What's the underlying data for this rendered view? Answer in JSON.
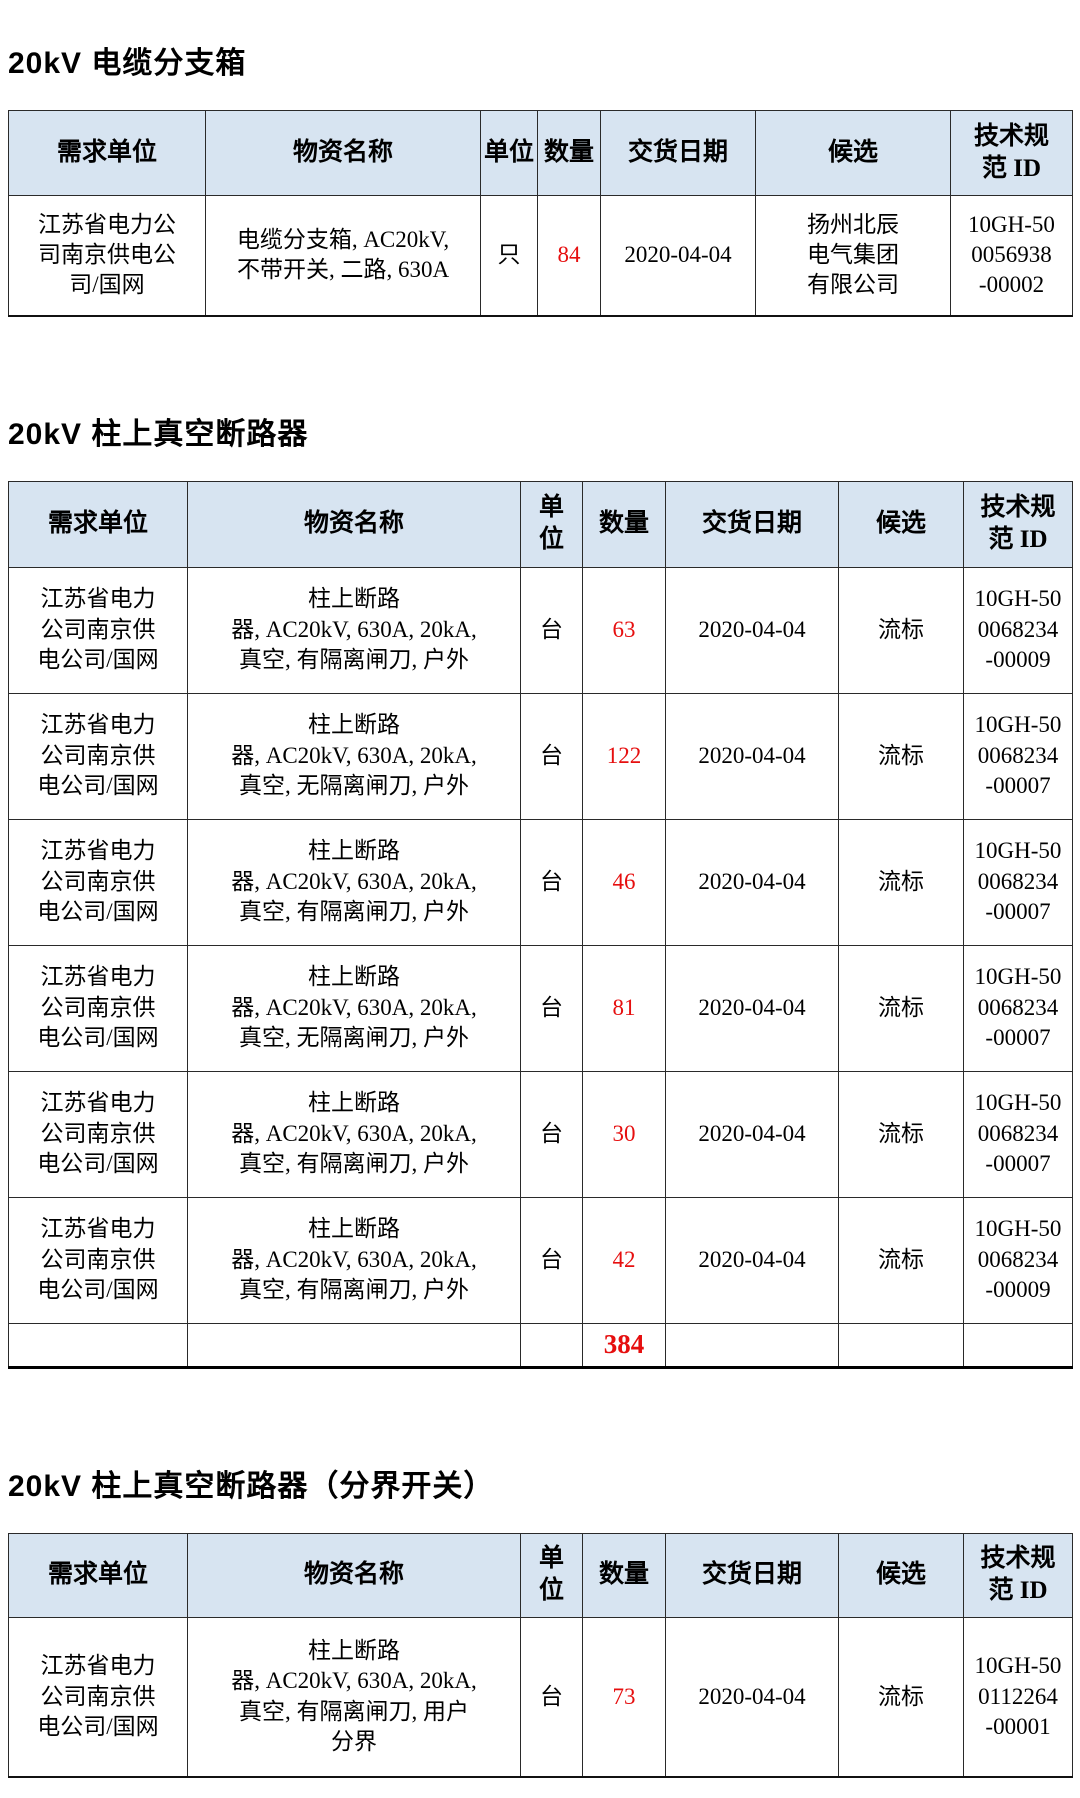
{
  "colors": {
    "header_bg": "#d7e4f1",
    "border": "#2a2a2a",
    "accent_red": "#e60f0f",
    "text": "#000000",
    "page_bg": "#ffffff"
  },
  "sections": [
    {
      "title": "20kV 电缆分支箱",
      "headers": [
        "需求单位",
        "物资名称",
        "单位",
        "数量",
        "交货日期",
        "候选",
        "技术规\n范 ID"
      ],
      "rows": [
        {
          "demand_unit": "江苏省电力公\n司南京供电公\n司/国网",
          "material": "电缆分支箱, AC20kV,\n不带开关, 二路, 630A",
          "unit": "只",
          "qty": "84",
          "date": "2020-04-04",
          "candidate": "扬州北辰\n电气集团\n有限公司",
          "spec_id": "10GH-50\n0056938\n-00002"
        }
      ],
      "total": null
    },
    {
      "title": "20kV 柱上真空断路器",
      "headers": [
        "需求单位",
        "物资名称",
        "单\n位",
        "数量",
        "交货日期",
        "候选",
        "技术规\n范 ID"
      ],
      "rows": [
        {
          "demand_unit": "江苏省电力\n公司南京供\n电公司/国网",
          "material": "柱上断路\n器, AC20kV, 630A, 20kA,\n真空, 有隔离闸刀, 户外",
          "unit": "台",
          "qty": "63",
          "date": "2020-04-04",
          "candidate": "流标",
          "spec_id": "10GH-50\n0068234\n-00009"
        },
        {
          "demand_unit": "江苏省电力\n公司南京供\n电公司/国网",
          "material": "柱上断路\n器, AC20kV, 630A, 20kA,\n真空, 无隔离闸刀, 户外",
          "unit": "台",
          "qty": "122",
          "date": "2020-04-04",
          "candidate": "流标",
          "spec_id": "10GH-50\n0068234\n-00007"
        },
        {
          "demand_unit": "江苏省电力\n公司南京供\n电公司/国网",
          "material": "柱上断路\n器, AC20kV, 630A, 20kA,\n真空, 有隔离闸刀, 户外",
          "unit": "台",
          "qty": "46",
          "date": "2020-04-04",
          "candidate": "流标",
          "spec_id": "10GH-50\n0068234\n-00007"
        },
        {
          "demand_unit": "江苏省电力\n公司南京供\n电公司/国网",
          "material": "柱上断路\n器, AC20kV, 630A, 20kA,\n真空, 无隔离闸刀, 户外",
          "unit": "台",
          "qty": "81",
          "date": "2020-04-04",
          "candidate": "流标",
          "spec_id": "10GH-50\n0068234\n-00007"
        },
        {
          "demand_unit": "江苏省电力\n公司南京供\n电公司/国网",
          "material": "柱上断路\n器, AC20kV, 630A, 20kA,\n真空, 有隔离闸刀, 户外",
          "unit": "台",
          "qty": "30",
          "date": "2020-04-04",
          "candidate": "流标",
          "spec_id": "10GH-50\n0068234\n-00007"
        },
        {
          "demand_unit": "江苏省电力\n公司南京供\n电公司/国网",
          "material": "柱上断路\n器, AC20kV, 630A, 20kA,\n真空, 有隔离闸刀, 户外",
          "unit": "台",
          "qty": "42",
          "date": "2020-04-04",
          "candidate": "流标",
          "spec_id": "10GH-50\n0068234\n-00009"
        }
      ],
      "total": "384"
    },
    {
      "title": "20kV 柱上真空断路器（分界开关）",
      "headers": [
        "需求单位",
        "物资名称",
        "单\n位",
        "数量",
        "交货日期",
        "候选",
        "技术规\n范 ID"
      ],
      "rows": [
        {
          "demand_unit": "江苏省电力\n公司南京供\n电公司/国网",
          "material": "柱上断路\n器, AC20kV, 630A, 20kA,\n真空, 有隔离闸刀, 用户\n分界",
          "unit": "台",
          "qty": "73",
          "date": "2020-04-04",
          "candidate": "流标",
          "spec_id": "10GH-50\n0112264\n-00001"
        }
      ],
      "total": null
    }
  ]
}
